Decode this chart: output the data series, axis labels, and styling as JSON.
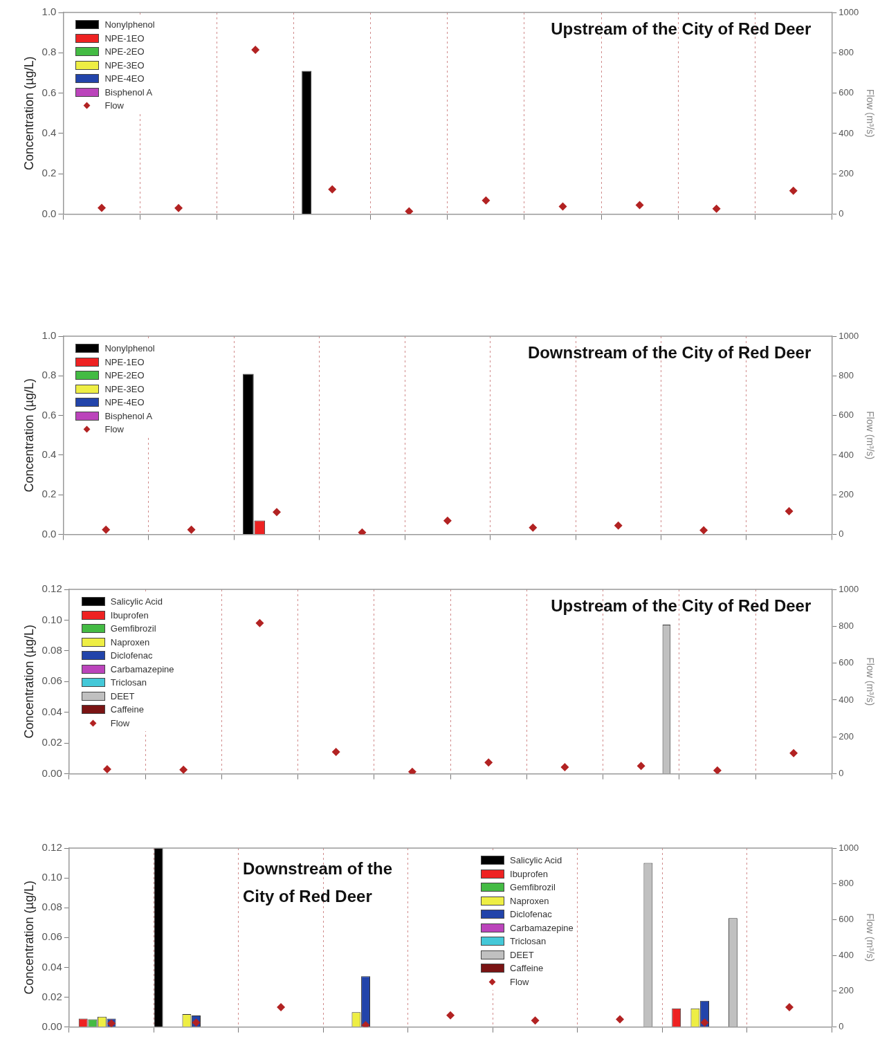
{
  "chart_data": [
    {
      "type": "bar",
      "title": "Upstream of the City of Red Deer",
      "ylabel": "Concentration (µg/L)",
      "y2label": "Flow (m³/s)",
      "categories": [
        null,
        null,
        null,
        null,
        null,
        null,
        null,
        null,
        null,
        null
      ],
      "ylim": [
        0,
        1
      ],
      "yticks": [
        {
          "value": 0,
          "label": "0.0"
        },
        {
          "value": 0.2,
          "label": "0.2"
        },
        {
          "value": 0.4,
          "label": "0.4"
        },
        {
          "value": 0.6,
          "label": "0.6"
        },
        {
          "value": 0.8,
          "label": "0.8"
        },
        {
          "value": 1,
          "label": "1.0"
        }
      ],
      "y2lim": [
        0,
        1000
      ],
      "y2ticks": [
        0,
        200,
        400,
        600,
        800,
        1000
      ],
      "grid": "x",
      "legend": "top left",
      "marker": "diamond",
      "series": [
        {
          "name": "Nonylphenol",
          "color": "#000000",
          "values": [
            null,
            null,
            null,
            0.71,
            null,
            null,
            null,
            null,
            null,
            null
          ]
        },
        {
          "name": "NPE-1EO",
          "color": "#ee2222",
          "values": [
            null,
            null,
            null,
            null,
            null,
            null,
            null,
            null,
            null,
            null
          ]
        },
        {
          "name": "NPE-2EO",
          "color": "#44bb44",
          "values": [
            null,
            null,
            null,
            null,
            null,
            null,
            null,
            null,
            null,
            null
          ]
        },
        {
          "name": "NPE-3EO",
          "color": "#eeee44",
          "values": [
            null,
            null,
            null,
            null,
            null,
            null,
            null,
            null,
            null,
            null
          ]
        },
        {
          "name": "NPE-4EO",
          "color": "#2244aa",
          "values": [
            null,
            null,
            null,
            null,
            null,
            null,
            null,
            null,
            null,
            null
          ]
        },
        {
          "name": "Bisphenol A",
          "color": "#bb44bb",
          "values": [
            null,
            null,
            null,
            null,
            null,
            null,
            null,
            null,
            null,
            null
          ]
        },
        {
          "name": "Flow",
          "type": "scatter",
          "axis": "y2",
          "color": "#b22222",
          "values": [
            31,
            30,
            815,
            123,
            14,
            68,
            38,
            45,
            27,
            116
          ]
        }
      ]
    },
    {
      "type": "bar",
      "title": "Downstream of the City of Red Deer",
      "ylabel": "Concentration (µg/L)",
      "y2label": "Flow (m³/s)",
      "categories": [
        null,
        null,
        null,
        null,
        null,
        null,
        null,
        null,
        null
      ],
      "ylim": [
        0,
        1
      ],
      "yticks": [
        {
          "value": 0,
          "label": "0.0"
        },
        {
          "value": 0.2,
          "label": "0.2"
        },
        {
          "value": 0.4,
          "label": "0.4"
        },
        {
          "value": 0.6,
          "label": "0.6"
        },
        {
          "value": 0.8,
          "label": "0.8"
        },
        {
          "value": 1,
          "label": "1.0"
        }
      ],
      "y2lim": [
        0,
        1000
      ],
      "y2ticks": [
        0,
        200,
        400,
        600,
        800,
        1000
      ],
      "grid": "x",
      "legend": "top left",
      "marker": "diamond",
      "series": [
        {
          "name": "Nonylphenol",
          "color": "#000000",
          "values": [
            null,
            null,
            0.81,
            null,
            null,
            null,
            null,
            null,
            null
          ]
        },
        {
          "name": "NPE-1EO",
          "color": "#ee2222",
          "values": [
            null,
            null,
            0.07,
            null,
            null,
            null,
            null,
            null,
            null
          ]
        },
        {
          "name": "NPE-2EO",
          "color": "#44bb44",
          "values": [
            null,
            null,
            null,
            null,
            null,
            null,
            null,
            null,
            null
          ]
        },
        {
          "name": "NPE-3EO",
          "color": "#eeee44",
          "values": [
            null,
            null,
            null,
            null,
            null,
            null,
            null,
            null,
            null
          ]
        },
        {
          "name": "NPE-4EO",
          "color": "#2244aa",
          "values": [
            null,
            null,
            null,
            null,
            null,
            null,
            null,
            null,
            null
          ]
        },
        {
          "name": "Bisphenol A",
          "color": "#bb44bb",
          "values": [
            null,
            null,
            null,
            null,
            null,
            null,
            null,
            null,
            null
          ]
        },
        {
          "name": "Flow",
          "type": "scatter",
          "axis": "y2",
          "color": "#b22222",
          "values": [
            24,
            24,
            113,
            10,
            69,
            34,
            45,
            21,
            117
          ]
        }
      ]
    },
    {
      "type": "bar",
      "title": "Upstream of the City of Red Deer",
      "ylabel": "Concentration (µg/L)",
      "y2label": "Flow (m³/s)",
      "categories": [
        null,
        null,
        null,
        null,
        null,
        null,
        null,
        null,
        null,
        null
      ],
      "ylim": [
        0,
        0.12
      ],
      "yticks": [
        {
          "value": 0,
          "label": "0.00"
        },
        {
          "value": 0.02,
          "label": "0.02"
        },
        {
          "value": 0.04,
          "label": "0.04"
        },
        {
          "value": 0.06,
          "label": "0.06"
        },
        {
          "value": 0.08,
          "label": "0.08"
        },
        {
          "value": 0.1,
          "label": "0.10"
        },
        {
          "value": 0.12,
          "label": "0.12"
        }
      ],
      "y2lim": [
        0,
        1000
      ],
      "y2ticks": [
        0,
        200,
        400,
        600,
        800,
        1000
      ],
      "grid": "x",
      "legend": "top left",
      "marker": "diamond",
      "series": [
        {
          "name": "Salicylic Acid",
          "color": "#000000",
          "values": [
            null,
            null,
            null,
            null,
            null,
            null,
            null,
            null,
            null,
            null
          ]
        },
        {
          "name": "Ibuprofen",
          "color": "#ee2222",
          "values": [
            null,
            null,
            null,
            null,
            null,
            null,
            null,
            null,
            null,
            null
          ]
        },
        {
          "name": "Gemfibrozil",
          "color": "#44bb44",
          "values": [
            null,
            null,
            null,
            null,
            null,
            null,
            null,
            null,
            null,
            null
          ]
        },
        {
          "name": "Naproxen",
          "color": "#eeee44",
          "values": [
            null,
            null,
            null,
            null,
            null,
            null,
            null,
            null,
            null,
            null
          ]
        },
        {
          "name": "Diclofenac",
          "color": "#2244aa",
          "values": [
            null,
            null,
            null,
            null,
            null,
            null,
            null,
            null,
            null,
            null
          ]
        },
        {
          "name": "Carbamazepine",
          "color": "#bb44bb",
          "values": [
            null,
            null,
            null,
            null,
            null,
            null,
            null,
            null,
            null,
            null
          ]
        },
        {
          "name": "Triclosan",
          "color": "#44c8d8",
          "values": [
            null,
            null,
            null,
            null,
            null,
            null,
            null,
            null,
            null,
            null
          ]
        },
        {
          "name": "DEET",
          "color": "#c0c0c0",
          "values": [
            null,
            null,
            null,
            null,
            null,
            null,
            null,
            0.097,
            null,
            null
          ]
        },
        {
          "name": "Caffeine",
          "color": "#7a1414",
          "values": [
            null,
            null,
            null,
            null,
            null,
            null,
            null,
            null,
            null,
            null
          ]
        },
        {
          "name": "Flow",
          "type": "scatter",
          "axis": "y2",
          "color": "#b22222",
          "values": [
            25,
            22,
            817,
            119,
            11,
            61,
            36,
            43,
            18,
            112
          ]
        }
      ]
    },
    {
      "type": "bar",
      "title": "Downstream of the City of Red Deer",
      "ylabel": "Concentration (µg/L)",
      "y2label": "Flow (m³/s)",
      "categories": [
        null,
        null,
        null,
        null,
        null,
        null,
        null,
        null,
        null
      ],
      "ylim": [
        0,
        0.12
      ],
      "yticks": [
        {
          "value": 0,
          "label": "0.00"
        },
        {
          "value": 0.02,
          "label": "0.02"
        },
        {
          "value": 0.04,
          "label": "0.04"
        },
        {
          "value": 0.06,
          "label": "0.06"
        },
        {
          "value": 0.08,
          "label": "0.08"
        },
        {
          "value": 0.1,
          "label": "0.10"
        },
        {
          "value": 0.12,
          "label": "0.12"
        }
      ],
      "y2lim": [
        0,
        1000
      ],
      "y2ticks": [
        0,
        200,
        400,
        600,
        800,
        1000
      ],
      "grid": "x",
      "legend": "top",
      "marker": "diamond",
      "series": [
        {
          "name": "Salicylic Acid",
          "color": "#000000",
          "values": [
            null,
            0.12,
            null,
            null,
            null,
            null,
            null,
            null,
            null
          ]
        },
        {
          "name": "Ibuprofen",
          "color": "#ee2222",
          "values": [
            0.0056,
            null,
            null,
            null,
            null,
            null,
            null,
            0.0125,
            null
          ]
        },
        {
          "name": "Gemfibrozil",
          "color": "#44bb44",
          "values": [
            0.0052,
            null,
            null,
            null,
            null,
            null,
            null,
            null,
            null
          ]
        },
        {
          "name": "Naproxen",
          "color": "#eeee44",
          "values": [
            0.0069,
            0.0086,
            null,
            0.0099,
            null,
            null,
            null,
            0.0125,
            null
          ]
        },
        {
          "name": "Diclofenac",
          "color": "#2244aa",
          "values": [
            0.0056,
            0.0077,
            null,
            0.034,
            null,
            null,
            null,
            0.0176,
            null
          ]
        },
        {
          "name": "Carbamazepine",
          "color": "#bb44bb",
          "values": [
            null,
            null,
            null,
            null,
            null,
            null,
            null,
            null,
            null
          ]
        },
        {
          "name": "Triclosan",
          "color": "#44c8d8",
          "values": [
            null,
            null,
            null,
            null,
            null,
            null,
            null,
            null,
            null
          ]
        },
        {
          "name": "DEET",
          "color": "#c0c0c0",
          "values": [
            null,
            null,
            null,
            null,
            null,
            null,
            0.11,
            0.073,
            null
          ]
        },
        {
          "name": "Caffeine",
          "color": "#7a1414",
          "values": [
            null,
            null,
            null,
            null,
            null,
            null,
            null,
            null,
            null
          ]
        },
        {
          "name": "Flow",
          "type": "scatter",
          "axis": "y2",
          "color": "#b22222",
          "values": [
            20,
            25,
            111,
            10,
            65,
            36,
            43,
            25,
            111
          ]
        }
      ]
    }
  ]
}
